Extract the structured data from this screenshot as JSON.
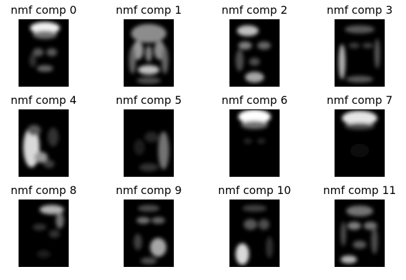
{
  "figure": {
    "background_color": "#ffffff",
    "panels": [
      {
        "title": "nmf comp 0",
        "glyph": "forehead-highlight"
      },
      {
        "title": "nmf comp 1",
        "glyph": "full-face-edges"
      },
      {
        "title": "nmf comp 2",
        "glyph": "upper-left-and-chin"
      },
      {
        "title": "nmf comp 3",
        "glyph": "face-outline-left-cheek"
      },
      {
        "title": "nmf comp 4",
        "glyph": "left-side-lighting"
      },
      {
        "title": "nmf comp 5",
        "glyph": "right-side-faint"
      },
      {
        "title": "nmf comp 6",
        "glyph": "top-forehead-bright"
      },
      {
        "title": "nmf comp 7",
        "glyph": "top-band"
      },
      {
        "title": "nmf comp 8",
        "glyph": "top-right-arc"
      },
      {
        "title": "nmf comp 9",
        "glyph": "right-cheek-eyes"
      },
      {
        "title": "nmf comp 10",
        "glyph": "left-jaw-bright"
      },
      {
        "title": "nmf comp 11",
        "glyph": "full-face-lower-left"
      }
    ]
  }
}
